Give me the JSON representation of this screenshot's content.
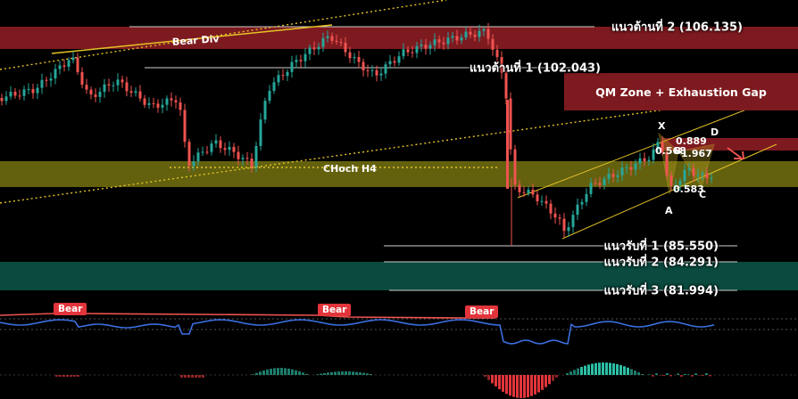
{
  "levels": {
    "resistance_2": "แนวต้านที่ 2 (106.135)",
    "resistance_1": "แนวต้านที่ 1 (102.043)",
    "support_1": "แนวรับที่ 1 (85.550)",
    "support_2": "แนวรับที่ 2 (84.291)",
    "support_3": "แนวรับที่ 3 (81.994)"
  },
  "zones": {
    "qm": "QM Zone + Exhaustion Gap",
    "choch": "CHoch H4",
    "bear_div": "Bear Div"
  },
  "pattern": {
    "x": "X",
    "a": "A",
    "b": "B",
    "c": "C",
    "d": "D",
    "r_0568": "0.568",
    "r_0889": "0.889",
    "r_1967": "1.967",
    "r_0583": "0.583"
  },
  "indicator": {
    "bear_1": "Bear",
    "bear_2": "Bear",
    "bear_3": "Bear"
  },
  "colors": {
    "bull": "#26a69a",
    "bear": "#ef5350",
    "resistance_zone": "#7d1a1f",
    "support_zone": "#0b4a40",
    "choch_zone": "#7a7a10",
    "indicator_line": "#3b6fe0",
    "trend": "#e5c228"
  }
}
